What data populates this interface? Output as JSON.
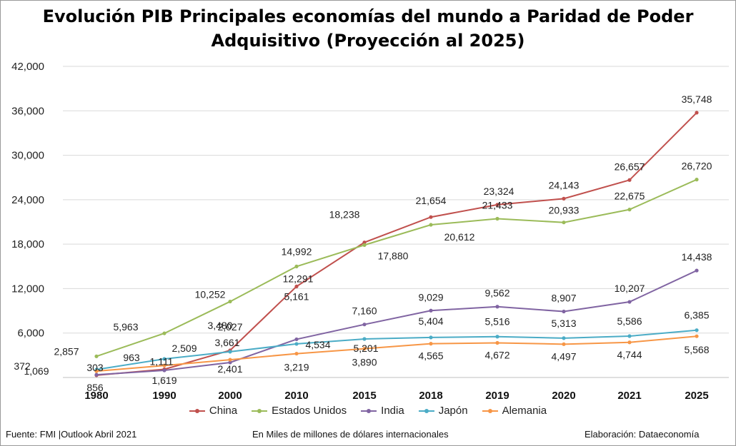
{
  "chart_data": {
    "type": "line",
    "title_line1": "Evolución PIB Principales economías del mundo a Paridad de Poder",
    "title_line2": "Adquisitivo (Proyección al 2025)",
    "categories": [
      "1980",
      "1990",
      "2000",
      "2010",
      "2015",
      "2018",
      "2019",
      "2020",
      "2021",
      "2025"
    ],
    "ylim": [
      0,
      42000
    ],
    "yticks": [
      6000,
      12000,
      18000,
      24000,
      30000,
      36000,
      42000
    ],
    "ytick_labels": [
      "6,000",
      "12,000",
      "18,000",
      "24,000",
      "30,000",
      "36,000",
      "42,000"
    ],
    "grid": true,
    "legend_position": "bottom",
    "series": [
      {
        "name": "China",
        "color": "#c0504d",
        "values": [
          303,
          1111,
          3661,
          12291,
          18238,
          21654,
          23324,
          24143,
          26657,
          35748
        ],
        "labels": [
          "303",
          "1,111",
          "3,661",
          "12,291",
          "18,238",
          "21,654",
          "23,324",
          "24,143",
          "26,657",
          "35,748"
        ]
      },
      {
        "name": "Estados Unidos",
        "color": "#9bbb59",
        "values": [
          2857,
          5963,
          10252,
          14992,
          17880,
          20612,
          21433,
          20933,
          22675,
          26720
        ],
        "labels": [
          "2,857",
          "5,963",
          "10,252",
          "14,992",
          "17,880",
          "20,612",
          "21,433",
          "20,933",
          "22,675",
          "26,720"
        ]
      },
      {
        "name": "India",
        "color": "#8064a2",
        "values": [
          372,
          963,
          2027,
          5161,
          7160,
          9029,
          9562,
          8907,
          10207,
          14438
        ],
        "labels": [
          "372",
          "963",
          "2,027",
          "5,161",
          "7,160",
          "9,029",
          "9,562",
          "8,907",
          "10,207",
          "14,438"
        ]
      },
      {
        "name": "Japón",
        "color": "#4bacc6",
        "values": [
          1069,
          2509,
          3480,
          4534,
          5201,
          5404,
          5516,
          5313,
          5586,
          6385
        ],
        "labels": [
          "1,069",
          "2,509",
          "3,480",
          "4,534",
          "5,201",
          "5,404",
          "5,516",
          "5,313",
          "5,586",
          "6,385"
        ]
      },
      {
        "name": "Alemania",
        "color": "#f79646",
        "values": [
          856,
          1619,
          2401,
          3219,
          3890,
          4565,
          4672,
          4497,
          4744,
          5568
        ],
        "labels": [
          "856",
          "1,619",
          "2,401",
          "3,219",
          "3,890",
          "4,565",
          "4,672",
          "4,497",
          "4,744",
          "5,568"
        ]
      }
    ]
  },
  "footer": {
    "source": "Fuente: FMI |Outlook Abril 2021",
    "units": "En Miles de millones de dólares internacionales",
    "credit": "Elaboración: Dataeconomía"
  }
}
